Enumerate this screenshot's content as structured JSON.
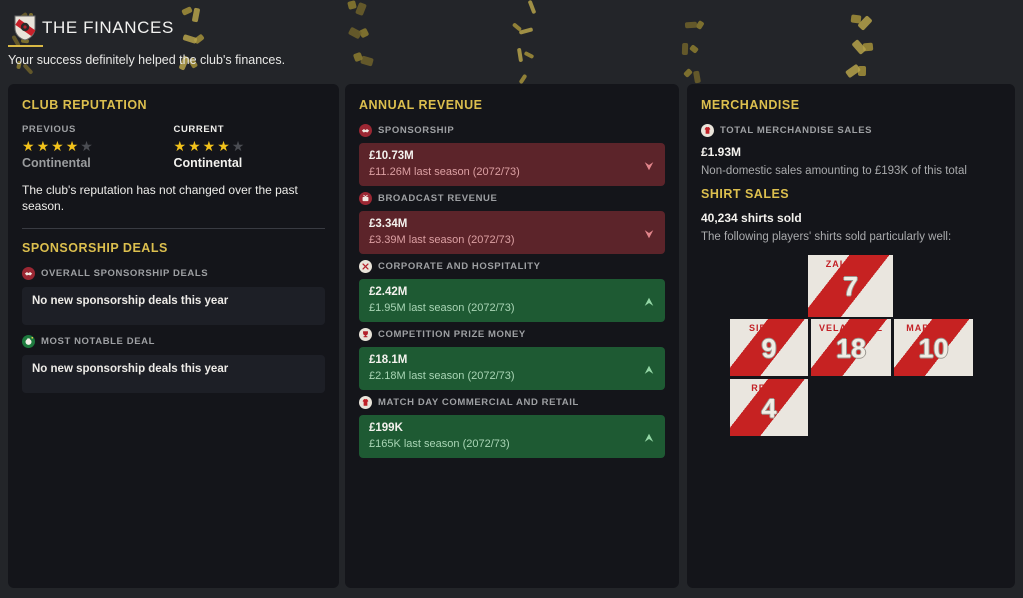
{
  "header": {
    "title": "THE FINANCES",
    "subtitle": "Your success definitely helped the club's finances."
  },
  "colors": {
    "accent_gold": "#dcbf4e",
    "star_gold": "#f2c21b",
    "revenue_down_bg": "#5c242a",
    "revenue_up_bg": "#1e5a33",
    "shirt_stripe_red": "#c62222"
  },
  "reputation": {
    "section_title": "CLUB REPUTATION",
    "previous": {
      "label": "PREVIOUS",
      "stars": {
        "filled": 4,
        "max": 5
      },
      "level": "Continental"
    },
    "current": {
      "label": "CURRENT",
      "stars": {
        "filled": 4,
        "max": 5
      },
      "level": "Continental"
    },
    "summary": "The club's reputation has not changed over the past season."
  },
  "sponsorship": {
    "section_title": "SPONSORSHIP DEALS",
    "items": [
      {
        "label": "OVERALL SPONSORSHIP DEALS",
        "icon": "handshake-icon",
        "text": "No new sponsorship deals this year"
      },
      {
        "label": "MOST NOTABLE DEAL",
        "icon": "money-bag-icon",
        "text": "No new sponsorship deals this year"
      }
    ]
  },
  "annual_revenue": {
    "section_title": "ANNUAL REVENUE",
    "items": [
      {
        "label": "SPONSORSHIP",
        "icon": "handshake-icon",
        "value": "£10.73M",
        "previous": "£11.26M last season (2072/73)",
        "trend": "down"
      },
      {
        "label": "BROADCAST REVENUE",
        "icon": "broadcast-icon",
        "value": "£3.34M",
        "previous": "£3.39M last season (2072/73)",
        "trend": "down"
      },
      {
        "label": "CORPORATE AND HOSPITALITY",
        "icon": "hospitality-icon",
        "value": "£2.42M",
        "previous": "£1.95M last season (2072/73)",
        "trend": "up"
      },
      {
        "label": "COMPETITION PRIZE MONEY",
        "icon": "trophy-icon",
        "value": "£18.1M",
        "previous": "£2.18M last season (2072/73)",
        "trend": "up"
      },
      {
        "label": "MATCH DAY COMMERCIAL AND RETAIL",
        "icon": "shirt-icon",
        "value": "£199K",
        "previous": "£165K last season (2072/73)",
        "trend": "up"
      }
    ]
  },
  "merchandise": {
    "section_title": "MERCHANDISE",
    "total_label": "TOTAL MERCHANDISE SALES",
    "total_icon": "shirt-icon",
    "total_value": "£1.93M",
    "total_note": "Non-domestic sales amounting to £193K of this total",
    "shirt_sales": {
      "section_title": "SHIRT SALES",
      "sold": "40,234 shirts sold",
      "note": "The following players' shirts sold particularly well:",
      "shirts": [
        {
          "name": "ZALAZAR",
          "number": "7"
        },
        {
          "name": "SIERRA",
          "number": "9"
        },
        {
          "name": "VELASQUEZ",
          "number": "18"
        },
        {
          "name": "MARTÍNEZ",
          "number": "10"
        },
        {
          "name": "REYES",
          "number": "4"
        }
      ]
    }
  }
}
